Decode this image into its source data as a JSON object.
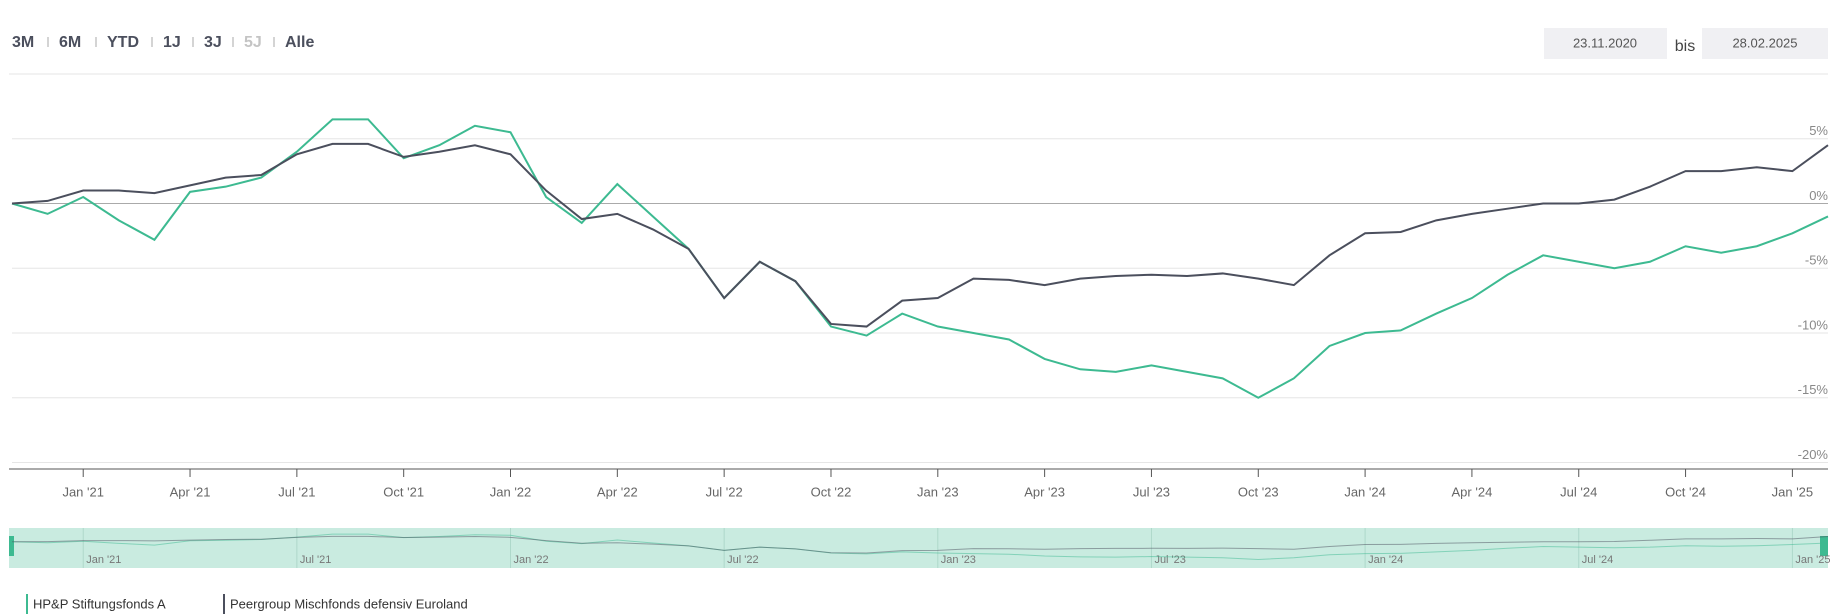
{
  "header": {
    "ranges": [
      "3M",
      "6M",
      "YTD",
      "1J",
      "3J",
      "5J",
      "Alle"
    ],
    "disabled_range": "5J",
    "date_from": "23.11.2020",
    "date_sep": "bis",
    "date_to": "28.02.2025"
  },
  "chart_data": {
    "type": "line",
    "x": [
      "2020-11",
      "2020-12",
      "2021-01",
      "2021-02",
      "2021-03",
      "2021-04",
      "2021-05",
      "2021-06",
      "2021-07",
      "2021-08",
      "2021-09",
      "2021-10",
      "2021-11",
      "2021-12",
      "2022-01",
      "2022-02",
      "2022-03",
      "2022-04",
      "2022-05",
      "2022-06",
      "2022-07",
      "2022-08",
      "2022-09",
      "2022-10",
      "2022-11",
      "2022-12",
      "2023-01",
      "2023-02",
      "2023-03",
      "2023-04",
      "2023-05",
      "2023-06",
      "2023-07",
      "2023-08",
      "2023-09",
      "2023-10",
      "2023-11",
      "2023-12",
      "2024-01",
      "2024-02",
      "2024-03",
      "2024-04",
      "2024-05",
      "2024-06",
      "2024-07",
      "2024-08",
      "2024-09",
      "2024-10",
      "2024-11",
      "2024-12",
      "2025-01",
      "2025-02"
    ],
    "series": [
      {
        "name": "HP&P Stiftungsfonds A",
        "color": "#3dba91",
        "values": [
          0,
          -0.8,
          0.5,
          -1.3,
          -2.8,
          0.9,
          1.3,
          2,
          4,
          6.5,
          6.5,
          3.5,
          4.5,
          6,
          5.5,
          0.5,
          -1.5,
          1.5,
          -1,
          -3.5,
          -7.3,
          -4.5,
          -6,
          -9.5,
          -10.2,
          -8.5,
          -9.5,
          -10,
          -10.5,
          -12,
          -12.8,
          -13,
          -12.5,
          -13,
          -13.5,
          -15,
          -13.5,
          -11,
          -10,
          -9.8,
          -8.5,
          -7.3,
          -5.5,
          -4,
          -4.5,
          -5,
          -4.5,
          -3.3,
          -3.8,
          -3.3,
          -2.3,
          -1
        ]
      },
      {
        "name": "Peergroup Mischfonds defensiv Euroland",
        "color": "#4b4f5d",
        "values": [
          0,
          0.2,
          1,
          1,
          0.8,
          1.4,
          2,
          2.2,
          3.8,
          4.6,
          4.6,
          3.6,
          4,
          4.5,
          3.8,
          1,
          -1.2,
          -0.8,
          -2,
          -3.5,
          -7.3,
          -4.5,
          -6,
          -9.3,
          -9.5,
          -7.5,
          -7.3,
          -5.8,
          -5.9,
          -6.3,
          -5.8,
          -5.6,
          -5.5,
          -5.6,
          -5.4,
          -5.8,
          -6.3,
          -4,
          -2.3,
          -2.2,
          -1.3,
          -0.8,
          -0.4,
          0,
          0,
          0.3,
          1.3,
          2.5,
          2.5,
          2.8,
          2.5,
          4.5
        ]
      }
    ],
    "xlim": [
      "2020-11",
      "2025-02"
    ],
    "xticks": [
      {
        "value": "2021-01",
        "label": "Jan '21"
      },
      {
        "value": "2021-04",
        "label": "Apr '21"
      },
      {
        "value": "2021-07",
        "label": "Jul '21"
      },
      {
        "value": "2021-10",
        "label": "Oct '21"
      },
      {
        "value": "2022-01",
        "label": "Jan '22"
      },
      {
        "value": "2022-04",
        "label": "Apr '22"
      },
      {
        "value": "2022-07",
        "label": "Jul '22"
      },
      {
        "value": "2022-10",
        "label": "Oct '22"
      },
      {
        "value": "2023-01",
        "label": "Jan '23"
      },
      {
        "value": "2023-04",
        "label": "Apr '23"
      },
      {
        "value": "2023-07",
        "label": "Jul '23"
      },
      {
        "value": "2023-10",
        "label": "Oct '23"
      },
      {
        "value": "2024-01",
        "label": "Jan '24"
      },
      {
        "value": "2024-04",
        "label": "Apr '24"
      },
      {
        "value": "2024-07",
        "label": "Jul '24"
      },
      {
        "value": "2024-10",
        "label": "Oct '24"
      },
      {
        "value": "2025-01",
        "label": "Jan '25"
      }
    ],
    "ylim": [
      -20.5,
      10
    ],
    "yticks": [
      {
        "value": -20,
        "label": "-20%"
      },
      {
        "value": -15,
        "label": "-15%"
      },
      {
        "value": -10,
        "label": "-10%"
      },
      {
        "value": -5,
        "label": "-5%"
      },
      {
        "value": 0,
        "label": "0%"
      },
      {
        "value": 5,
        "label": "5%"
      }
    ],
    "grid": true
  }
}
